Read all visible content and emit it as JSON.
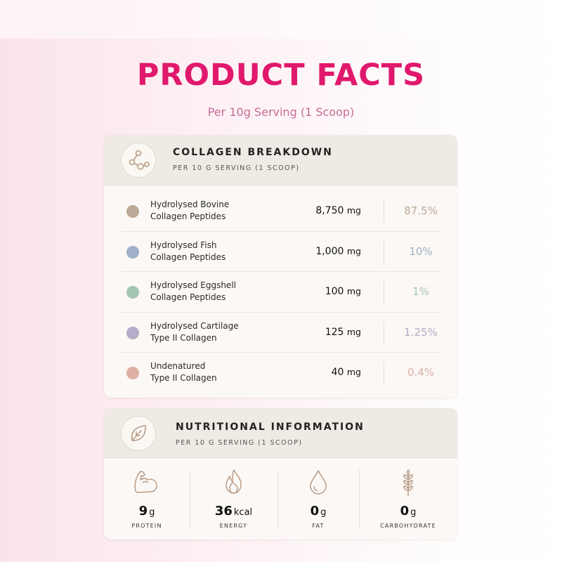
{
  "page": {
    "title": "PRODUCT FACTS",
    "subtitle": "Per 10g Serving (1 Scoop)"
  },
  "collagen": {
    "icon": "molecule-icon",
    "title": "COLLAGEN BREAKDOWN",
    "subtitle": "PER 10 G SERVING (1 SCOOP)",
    "rows": [
      {
        "label_line1": "Hydrolysed Bovine",
        "label_line2": "Collagen Peptides",
        "amount": "8,750",
        "unit": "mg",
        "percent": "87.5%",
        "color": "#bca896"
      },
      {
        "label_line1": "Hydrolysed Fish",
        "label_line2": "Collagen Peptides",
        "amount": "1,000",
        "unit": "mg",
        "percent": "10%",
        "color": "#9fb0c8"
      },
      {
        "label_line1": "Hydrolysed Eggshell",
        "label_line2": "Collagen Peptides",
        "amount": "100",
        "unit": "mg",
        "percent": "1%",
        "color": "#a5c6b1"
      },
      {
        "label_line1": "Hydrolysed Cartilage",
        "label_line2": "Type II Collagen",
        "amount": "125",
        "unit": "mg",
        "percent": "1.25%",
        "color": "#b6abc8"
      },
      {
        "label_line1": "Undenatured",
        "label_line2": "Type II Collagen",
        "amount": "40",
        "unit": "mg",
        "percent": "0.4%",
        "color": "#ddb0a3"
      }
    ]
  },
  "nutrition": {
    "icon": "leaf-icon",
    "title": "NUTRITIONAL INFORMATION",
    "subtitle": "PER 10 G SERVING (1 SCOOP)",
    "items": [
      {
        "icon": "muscle-arm-icon",
        "value": "9",
        "unit": "g",
        "label": "PROTEIN"
      },
      {
        "icon": "flame-icon",
        "value": "36",
        "unit": "kcal",
        "label": "ENERGY"
      },
      {
        "icon": "droplet-icon",
        "value": "0",
        "unit": "g",
        "label": "FAT"
      },
      {
        "icon": "wheat-icon",
        "value": "0",
        "unit": "g",
        "label": "CARBOHYDRATE"
      }
    ]
  },
  "colors": {
    "accent": "#e0196d",
    "subtitle": "#c76a97",
    "icon_stroke": "#b89c86"
  }
}
